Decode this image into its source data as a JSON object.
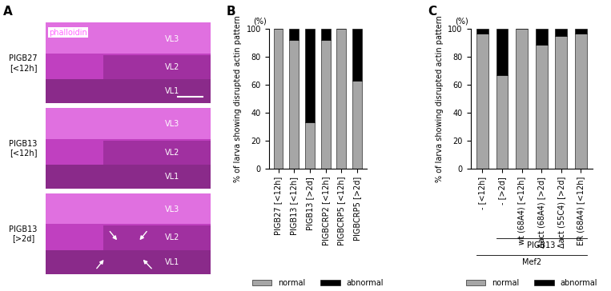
{
  "panel_A": {
    "label": "A",
    "stain": "phalloidin",
    "images": [
      {
        "genotype": "PIGB27",
        "time": "[<12h]",
        "muscles": [
          "VL3",
          "VL2",
          "VL1"
        ]
      },
      {
        "genotype": "PIGB13",
        "time": "[<12h]",
        "muscles": [
          "VL3",
          "VL2",
          "VL1"
        ]
      },
      {
        "genotype": "PIGB13",
        "time": "[>2d]",
        "muscles": [
          "VL3",
          "VL2",
          "VL1"
        ]
      }
    ]
  },
  "chart_data": [
    {
      "type": "bar",
      "stacked": true,
      "panel": "B",
      "y_label": "% of larva showing disrupted actin pattern",
      "y_unit": "(%)",
      "categories": [
        "PIGB27 [<12h]",
        "PIGB13 [<12h]",
        "PIGB13 [>2d]",
        "PIGBCRP2 [<12h]",
        "PIGBCRP5 [<12h]",
        "PIGBCRP5 [>2d]"
      ],
      "series": [
        {
          "name": "normal",
          "color": "#a6a6a6",
          "values": [
            100,
            92,
            33,
            92,
            100,
            63
          ]
        },
        {
          "name": "abnormal",
          "color": "#000000",
          "values": [
            0,
            8,
            67,
            8,
            0,
            37
          ]
        }
      ],
      "ylim": [
        0,
        100
      ],
      "yticks": [
        0,
        20,
        40,
        60,
        80,
        100
      ],
      "legend": "bottom"
    },
    {
      "type": "bar",
      "stacked": true,
      "panel": "C",
      "y_label": "% of larva showing disrupted actin pattern",
      "y_unit": "(%)",
      "categories": [
        "- [<12h]",
        "- [>2d]",
        "wt (68A4) [<12h]",
        "Δact (68A4) [>2d]",
        "Δact (55C4) [>2d]",
        "ER (68A4) [<12h]"
      ],
      "series": [
        {
          "name": "normal",
          "color": "#a6a6a6",
          "values": [
            97,
            67,
            100,
            89,
            95,
            97
          ]
        },
        {
          "name": "abnormal",
          "color": "#000000",
          "values": [
            3,
            33,
            0,
            11,
            5,
            3
          ]
        }
      ],
      "groups": [
        {
          "label": "PIGB13",
          "from": "- [>2d]",
          "to": "ER (68A4) [<12h]"
        },
        {
          "label": "Mef2",
          "from": "- [<12h]",
          "to": "ER (68A4) [<12h]"
        }
      ],
      "ylim": [
        0,
        100
      ],
      "yticks": [
        0,
        20,
        40,
        60,
        80,
        100
      ],
      "legend": "bottom"
    }
  ]
}
